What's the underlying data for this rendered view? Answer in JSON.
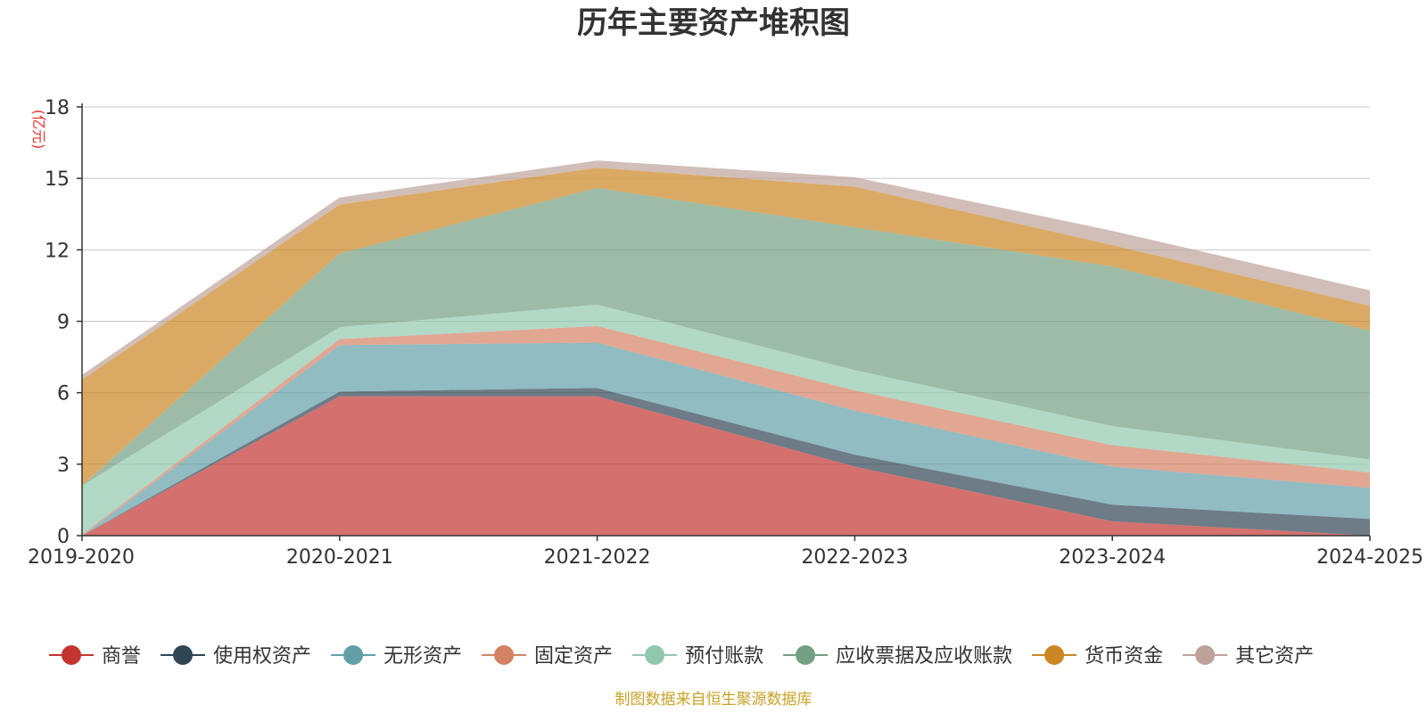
{
  "chart_data": {
    "type": "area",
    "stacked": true,
    "title": "历年主要资产堆积图",
    "unit": "(亿元)",
    "source": "制图数据来自恒生聚源数据库",
    "x": [
      "2019-2020",
      "2020-2021",
      "2021-2022",
      "2022-2023",
      "2023-2024",
      "2024-2025"
    ],
    "ylim": [
      0,
      18
    ],
    "yticks": [
      "0",
      "3",
      "6",
      "9",
      "12",
      "15",
      "18"
    ],
    "grid": true,
    "legend_position": "bottom",
    "series": [
      {
        "name": "商誉",
        "color": "#c23531",
        "values": [
          0,
          5.85,
          5.85,
          2.9,
          0.6,
          0
        ]
      },
      {
        "name": "使用权资产",
        "color": "#2f4554",
        "values": [
          0,
          0.2,
          0.35,
          0.5,
          0.7,
          0.7
        ]
      },
      {
        "name": "无形资产",
        "color": "#61a0a8",
        "values": [
          0,
          1.95,
          1.9,
          1.85,
          1.6,
          1.3
        ]
      },
      {
        "name": "固定资产",
        "color": "#d48265",
        "values": [
          0.05,
          0.25,
          0.7,
          0.85,
          0.9,
          0.65
        ]
      },
      {
        "name": "预付账款",
        "color": "#91c7ae",
        "values": [
          2.05,
          0.5,
          0.9,
          0.85,
          0.8,
          0.55
        ]
      },
      {
        "name": "应收票据及应收账款",
        "color": "#749f83",
        "values": [
          0,
          3.1,
          4.9,
          6.0,
          6.7,
          5.4
        ]
      },
      {
        "name": "货币资金",
        "color": "#ca8622",
        "values": [
          4.45,
          2.05,
          0.85,
          1.7,
          0.9,
          1.05
        ]
      },
      {
        "name": "其它资产",
        "color": "#bda29a",
        "values": [
          0.2,
          0.3,
          0.3,
          0.4,
          0.6,
          0.65
        ]
      }
    ]
  }
}
